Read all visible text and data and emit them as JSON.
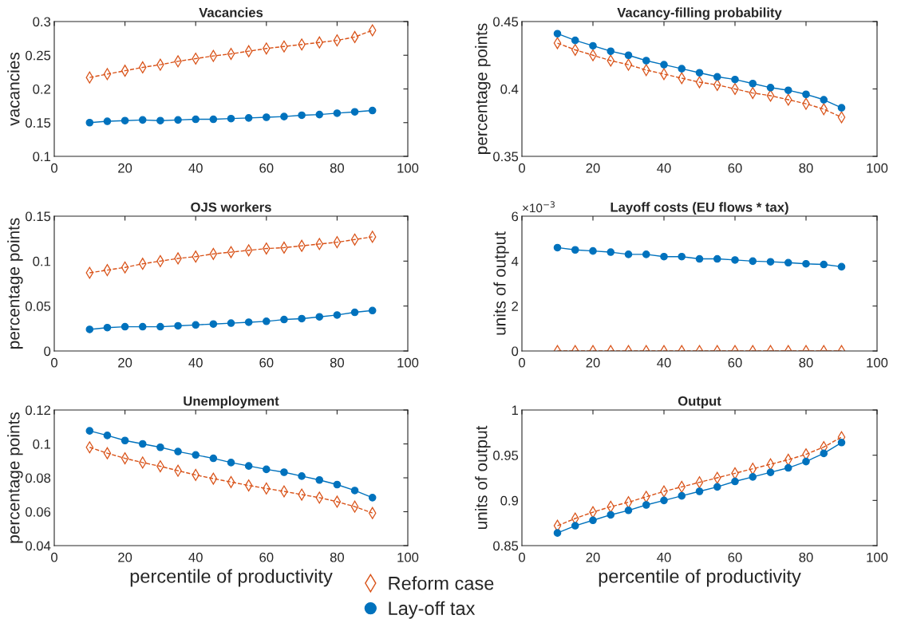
{
  "chart_data": [
    {
      "type": "line",
      "title": "Vacancies",
      "ylabel": "vacancies",
      "xlim": [
        0,
        100
      ],
      "xticks": [
        0,
        20,
        40,
        60,
        80,
        100
      ],
      "ylim": [
        0.1,
        0.3
      ],
      "yticks": [
        0.1,
        0.15,
        0.2,
        0.25,
        0.3
      ],
      "grid": false,
      "legend": false,
      "x": [
        10,
        15,
        20,
        25,
        30,
        35,
        40,
        45,
        50,
        55,
        60,
        65,
        70,
        75,
        80,
        85,
        90
      ],
      "series": [
        {
          "color": "#d95319",
          "marker": "diamond",
          "line_style": "dashed",
          "values": [
            0.217,
            0.222,
            0.227,
            0.232,
            0.236,
            0.241,
            0.245,
            0.249,
            0.252,
            0.256,
            0.26,
            0.263,
            0.266,
            0.269,
            0.272,
            0.277,
            0.287
          ]
        },
        {
          "color": "#0072bd",
          "marker": "circle",
          "line_style": "solid",
          "values": [
            0.15,
            0.152,
            0.153,
            0.154,
            0.153,
            0.154,
            0.155,
            0.155,
            0.156,
            0.157,
            0.158,
            0.159,
            0.161,
            0.162,
            0.164,
            0.166,
            0.168
          ]
        }
      ]
    },
    {
      "type": "line",
      "title": "Vacancy-filling probability",
      "ylabel": "percentage points",
      "xlim": [
        0,
        100
      ],
      "xticks": [
        0,
        20,
        40,
        60,
        80,
        100
      ],
      "ylim": [
        0.35,
        0.45
      ],
      "yticks": [
        0.35,
        0.4,
        0.45
      ],
      "grid": false,
      "legend": false,
      "x": [
        10,
        15,
        20,
        25,
        30,
        35,
        40,
        45,
        50,
        55,
        60,
        65,
        70,
        75,
        80,
        85,
        90
      ],
      "series": [
        {
          "color": "#d95319",
          "marker": "diamond",
          "line_style": "dashed",
          "values": [
            0.434,
            0.429,
            0.425,
            0.421,
            0.418,
            0.414,
            0.411,
            0.408,
            0.405,
            0.403,
            0.4,
            0.397,
            0.395,
            0.392,
            0.389,
            0.385,
            0.379
          ]
        },
        {
          "color": "#0072bd",
          "marker": "circle",
          "line_style": "solid",
          "values": [
            0.441,
            0.436,
            0.432,
            0.428,
            0.425,
            0.421,
            0.418,
            0.415,
            0.412,
            0.409,
            0.407,
            0.404,
            0.401,
            0.399,
            0.396,
            0.392,
            0.386
          ]
        }
      ]
    },
    {
      "type": "line",
      "title": "OJS workers",
      "ylabel": "percentage points",
      "xlim": [
        0,
        100
      ],
      "xticks": [
        0,
        20,
        40,
        60,
        80,
        100
      ],
      "ylim": [
        0,
        0.15
      ],
      "yticks": [
        0,
        0.05,
        0.1,
        0.15
      ],
      "grid": false,
      "legend": false,
      "x": [
        10,
        15,
        20,
        25,
        30,
        35,
        40,
        45,
        50,
        55,
        60,
        65,
        70,
        75,
        80,
        85,
        90
      ],
      "series": [
        {
          "color": "#d95319",
          "marker": "diamond",
          "line_style": "dashed",
          "values": [
            0.087,
            0.09,
            0.093,
            0.097,
            0.1,
            0.103,
            0.105,
            0.108,
            0.11,
            0.112,
            0.114,
            0.115,
            0.117,
            0.119,
            0.121,
            0.124,
            0.127
          ]
        },
        {
          "color": "#0072bd",
          "marker": "circle",
          "line_style": "solid",
          "values": [
            0.024,
            0.026,
            0.027,
            0.027,
            0.027,
            0.028,
            0.029,
            0.03,
            0.031,
            0.032,
            0.033,
            0.035,
            0.036,
            0.038,
            0.04,
            0.043,
            0.045
          ]
        }
      ]
    },
    {
      "type": "line",
      "title": "Layoff costs (EU flows * tax)",
      "ylabel": "units of output",
      "annotations": [
        "×10$^{−3}$"
      ],
      "xlim": [
        0,
        100
      ],
      "xticks": [
        0,
        20,
        40,
        60,
        80,
        100
      ],
      "ylim": [
        0,
        6
      ],
      "yticks": [
        0,
        2,
        4,
        6
      ],
      "grid": false,
      "legend": false,
      "x": [
        10,
        15,
        20,
        25,
        30,
        35,
        40,
        45,
        50,
        55,
        60,
        65,
        70,
        75,
        80,
        85,
        90
      ],
      "series": [
        {
          "color": "#d95319",
          "marker": "diamond",
          "line_style": "dashed",
          "values": [
            0,
            0,
            0,
            0,
            0,
            0,
            0,
            0,
            0,
            0,
            0,
            0,
            0,
            0,
            0,
            0,
            0
          ]
        },
        {
          "color": "#0072bd",
          "marker": "circle",
          "line_style": "solid",
          "values": [
            4.6,
            4.5,
            4.45,
            4.4,
            4.3,
            4.3,
            4.2,
            4.2,
            4.1,
            4.1,
            4.05,
            4.0,
            3.97,
            3.93,
            3.88,
            3.85,
            3.75
          ]
        }
      ]
    },
    {
      "type": "line",
      "title": "Unemployment",
      "xlabel": "percentile of productivity",
      "ylabel": "percentage points",
      "xlim": [
        0,
        100
      ],
      "xticks": [
        0,
        20,
        40,
        60,
        80,
        100
      ],
      "ylim": [
        0.04,
        0.12
      ],
      "yticks": [
        0.04,
        0.06,
        0.08,
        0.1,
        0.12
      ],
      "grid": false,
      "legend": false,
      "x": [
        10,
        15,
        20,
        25,
        30,
        35,
        40,
        45,
        50,
        55,
        60,
        65,
        70,
        75,
        80,
        85,
        90
      ],
      "series": [
        {
          "color": "#d95319",
          "marker": "diamond",
          "line_style": "dashed",
          "values": [
            0.098,
            0.0945,
            0.0915,
            0.089,
            0.0868,
            0.0842,
            0.0817,
            0.0795,
            0.0775,
            0.0755,
            0.0737,
            0.072,
            0.0701,
            0.0683,
            0.0659,
            0.063,
            0.0592
          ]
        },
        {
          "color": "#0072bd",
          "marker": "circle",
          "line_style": "solid",
          "values": [
            0.1077,
            0.105,
            0.102,
            0.1,
            0.098,
            0.0955,
            0.0935,
            0.0915,
            0.089,
            0.087,
            0.085,
            0.0833,
            0.081,
            0.0787,
            0.076,
            0.0725,
            0.0683
          ]
        }
      ]
    },
    {
      "type": "line",
      "title": "Output",
      "xlabel": "percentile of productivity",
      "ylabel": "units of output",
      "xlim": [
        0,
        100
      ],
      "xticks": [
        0,
        20,
        40,
        60,
        80,
        100
      ],
      "ylim": [
        0.85,
        1
      ],
      "yticks": [
        0.85,
        0.9,
        0.95,
        1
      ],
      "grid": false,
      "legend": "bottom left",
      "x": [
        10,
        15,
        20,
        25,
        30,
        35,
        40,
        45,
        50,
        55,
        60,
        65,
        70,
        75,
        80,
        85,
        90
      ],
      "series": [
        {
          "name": "Reform case",
          "color": "#d95319",
          "marker": "diamond",
          "line_style": "dashed",
          "values": [
            0.872,
            0.88,
            0.887,
            0.893,
            0.898,
            0.904,
            0.91,
            0.915,
            0.92,
            0.925,
            0.93,
            0.935,
            0.94,
            0.945,
            0.951,
            0.959,
            0.97
          ]
        },
        {
          "name": "Lay-off tax",
          "color": "#0072bd",
          "marker": "circle",
          "line_style": "solid",
          "values": [
            0.864,
            0.872,
            0.878,
            0.884,
            0.889,
            0.895,
            0.9,
            0.905,
            0.91,
            0.915,
            0.921,
            0.926,
            0.931,
            0.936,
            0.943,
            0.952,
            0.964
          ]
        }
      ]
    }
  ]
}
